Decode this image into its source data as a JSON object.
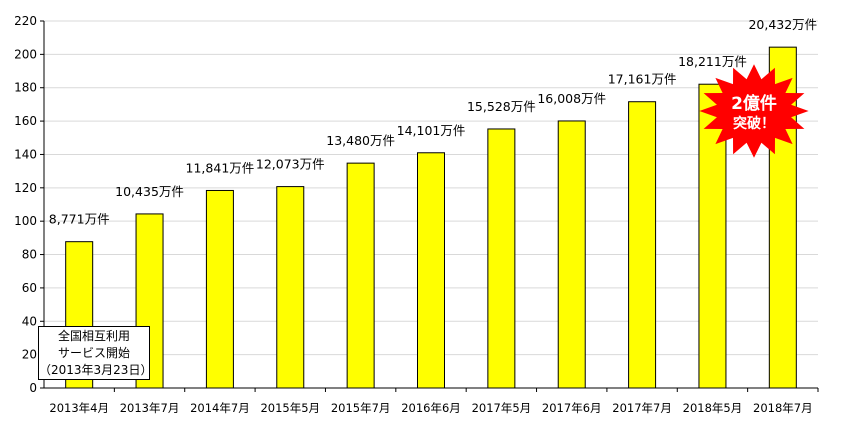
{
  "chart_data": {
    "type": "bar",
    "categories": [
      "2013年4月",
      "2013年7月",
      "2014年7月",
      "2015年5月",
      "2015年7月",
      "2016年6月",
      "2017年5月",
      "2017年6月",
      "2017年7月",
      "2018年5月",
      "2018年7月"
    ],
    "values": [
      87.71,
      104.35,
      118.41,
      120.73,
      134.8,
      141.01,
      155.28,
      160.08,
      171.61,
      182.11,
      204.32
    ],
    "data_labels": [
      "8,771万件",
      "10,435万件",
      "11,841万件",
      "12,073万件",
      "13,480万件",
      "14,101万件",
      "15,528万件",
      "16,008万件",
      "17,161万件",
      "18,211万件",
      "20,432万件"
    ],
    "yticks": [
      0,
      20,
      40,
      60,
      80,
      100,
      120,
      140,
      160,
      180,
      200,
      220
    ],
    "ylim": [
      0,
      220
    ],
    "grid": true,
    "legend": "none",
    "bar_color": "#ffff00",
    "bar_outline": "#000000",
    "grid_color": "#d9d9d9",
    "annotation_box": {
      "lines": [
        "全国相互利用",
        "サービス開始",
        "（2013年3月23日）"
      ]
    },
    "burst": {
      "line1": "2億件",
      "line2": "突破！",
      "color": "#ff0000"
    }
  }
}
